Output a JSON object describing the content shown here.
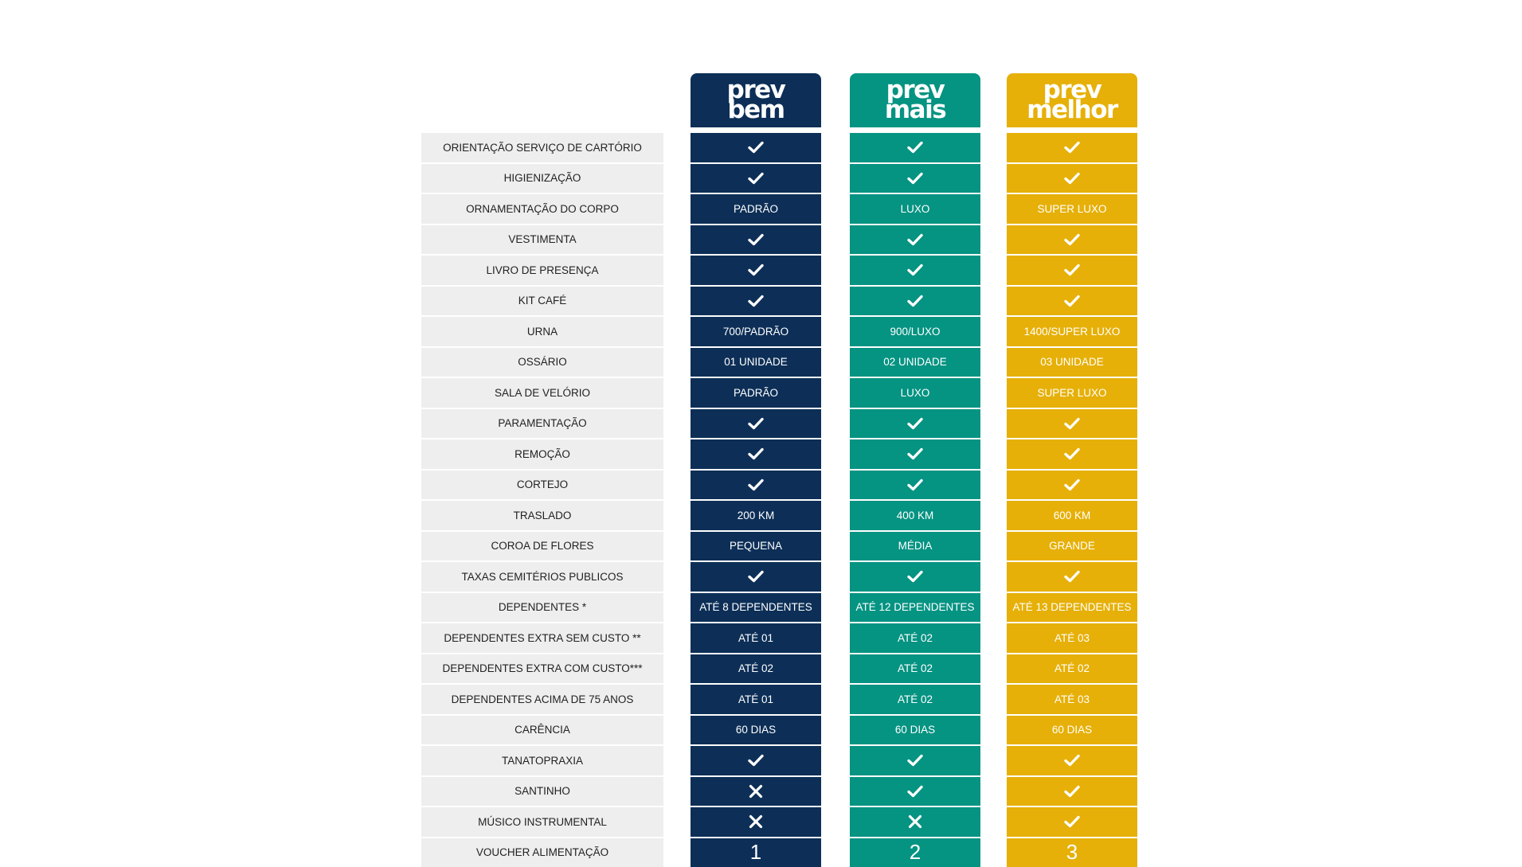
{
  "colors": {
    "bem": "#0d2f57",
    "mais": "#059382",
    "melhor": "#e6b008",
    "label_bg": "#eeeeee"
  },
  "plans": [
    {
      "key": "bem",
      "name_line1": "prev",
      "name_line2": "bem"
    },
    {
      "key": "mais",
      "name_line1": "prev",
      "name_line2": "mais"
    },
    {
      "key": "melhor",
      "name_line1": "prev",
      "name_line2": "melhor"
    }
  ],
  "rows": [
    {
      "label": "ORIENTAÇÃO SERVIÇO DE CARTÓRIO",
      "values": [
        "check-icon",
        "check-icon",
        "check-icon"
      ]
    },
    {
      "label": "HIGIENIZAÇÃO",
      "values": [
        "check-icon",
        "check-icon",
        "check-icon"
      ]
    },
    {
      "label": "ORNAMENTAÇÃO DO CORPO",
      "values": [
        "PADRÃO",
        "LUXO",
        "SUPER LUXO"
      ]
    },
    {
      "label": "VESTIMENTA",
      "values": [
        "check-icon",
        "check-icon",
        "check-icon"
      ]
    },
    {
      "label": "LIVRO DE PRESENÇA",
      "values": [
        "check-icon",
        "check-icon",
        "check-icon"
      ]
    },
    {
      "label": "KIT CAFÉ",
      "values": [
        "check-icon",
        "check-icon",
        "check-icon"
      ]
    },
    {
      "label": "URNA",
      "values": [
        "700/PADRÃO",
        "900/LUXO",
        "1400/SUPER LUXO"
      ]
    },
    {
      "label": "OSSÁRIO",
      "values": [
        "01 UNIDADE",
        "02 UNIDADE",
        "03 UNIDADE"
      ]
    },
    {
      "label": "SALA DE VELÓRIO",
      "values": [
        "PADRÃO",
        "LUXO",
        "SUPER LUXO"
      ]
    },
    {
      "label": "PARAMENTAÇÃO",
      "values": [
        "check-icon",
        "check-icon",
        "check-icon"
      ]
    },
    {
      "label": "REMOÇÃO",
      "values": [
        "check-icon",
        "check-icon",
        "check-icon"
      ]
    },
    {
      "label": "CORTEJO",
      "values": [
        "check-icon",
        "check-icon",
        "check-icon"
      ]
    },
    {
      "label": "TRASLADO",
      "values": [
        "200 KM",
        "400 KM",
        "600 KM"
      ]
    },
    {
      "label": "COROA DE FLORES",
      "values": [
        "PEQUENA",
        "MÉDIA",
        "GRANDE"
      ]
    },
    {
      "label": "TAXAS CEMITÉRIOS PUBLICOS",
      "values": [
        "check-icon",
        "check-icon",
        "check-icon"
      ]
    },
    {
      "label": "DEPENDENTES *",
      "values": [
        "ATÉ 8 DEPENDENTES",
        "ATÉ 12 DEPENDENTES",
        "ATÉ 13 DEPENDENTES"
      ]
    },
    {
      "label": "DEPENDENTES EXTRA SEM CUSTO **",
      "values": [
        "ATÉ 01",
        "ATÉ 02",
        "ATÉ 03"
      ]
    },
    {
      "label": "DEPENDENTES EXTRA COM CUSTO***",
      "values": [
        "ATÉ 02",
        "ATÉ 02",
        "ATÉ 02"
      ]
    },
    {
      "label": "DEPENDENTES ACIMA DE 75 ANOS",
      "values": [
        "ATÉ 01",
        "ATÉ 02",
        "ATÉ 03"
      ]
    },
    {
      "label": "CARÊNCIA",
      "values": [
        "60 DIAS",
        "60 DIAS",
        "60 DIAS"
      ]
    },
    {
      "label": "TANATOPRAXIA",
      "values": [
        "check-icon",
        "check-icon",
        "check-icon"
      ]
    },
    {
      "label": "SANTINHO",
      "values": [
        "cross-icon",
        "check-icon",
        "check-icon"
      ]
    },
    {
      "label": "MÚSICO INSTRUMENTAL",
      "values": [
        "cross-icon",
        "cross-icon",
        "check-icon"
      ]
    },
    {
      "label": "VOUCHER ALIMENTAÇÃO",
      "values": [
        "1",
        "2",
        "3"
      ]
    }
  ]
}
